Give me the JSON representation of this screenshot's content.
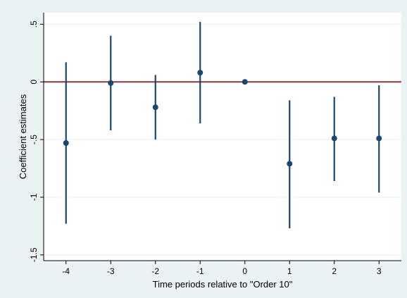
{
  "chart_data": {
    "type": "scatter",
    "title": "",
    "xlabel": "Time periods relative to \"Order 10\"",
    "ylabel": "Coefficient estimates",
    "xlim": [
      -4.5,
      3.5
    ],
    "ylim": [
      -1.55,
      0.6
    ],
    "xticks": [
      -4,
      -3,
      -2,
      -1,
      0,
      1,
      2,
      3
    ],
    "xtick_labels": [
      "-4",
      "-3",
      "-2",
      "-1",
      "0",
      "1",
      "2",
      "3"
    ],
    "yticks": [
      0.5,
      0,
      -0.5,
      -1,
      -1.5
    ],
    "ytick_labels": [
      ".5",
      "0",
      "-.5",
      "-1",
      "-1.5"
    ],
    "grid": "horizontal",
    "reference_line_y": 0,
    "series": [
      {
        "x": [
          -4,
          -3,
          -2,
          -1,
          0,
          1,
          2,
          3
        ],
        "y": [
          -0.53,
          -0.01,
          -0.22,
          0.08,
          0.0,
          -0.71,
          -0.49,
          -0.49
        ],
        "ci_low": [
          -1.23,
          -0.42,
          -0.5,
          -0.36,
          0.0,
          -1.27,
          -0.86,
          -0.96
        ],
        "ci_high": [
          0.17,
          0.4,
          0.06,
          0.52,
          0.0,
          -0.16,
          -0.13,
          -0.03
        ]
      }
    ],
    "colors": {
      "outer_background": "#eaf2f3",
      "plot_background": "#ffffff",
      "marker": "#1a476f",
      "reference_line": "#90353b",
      "grid": "#eaf2f3"
    }
  }
}
